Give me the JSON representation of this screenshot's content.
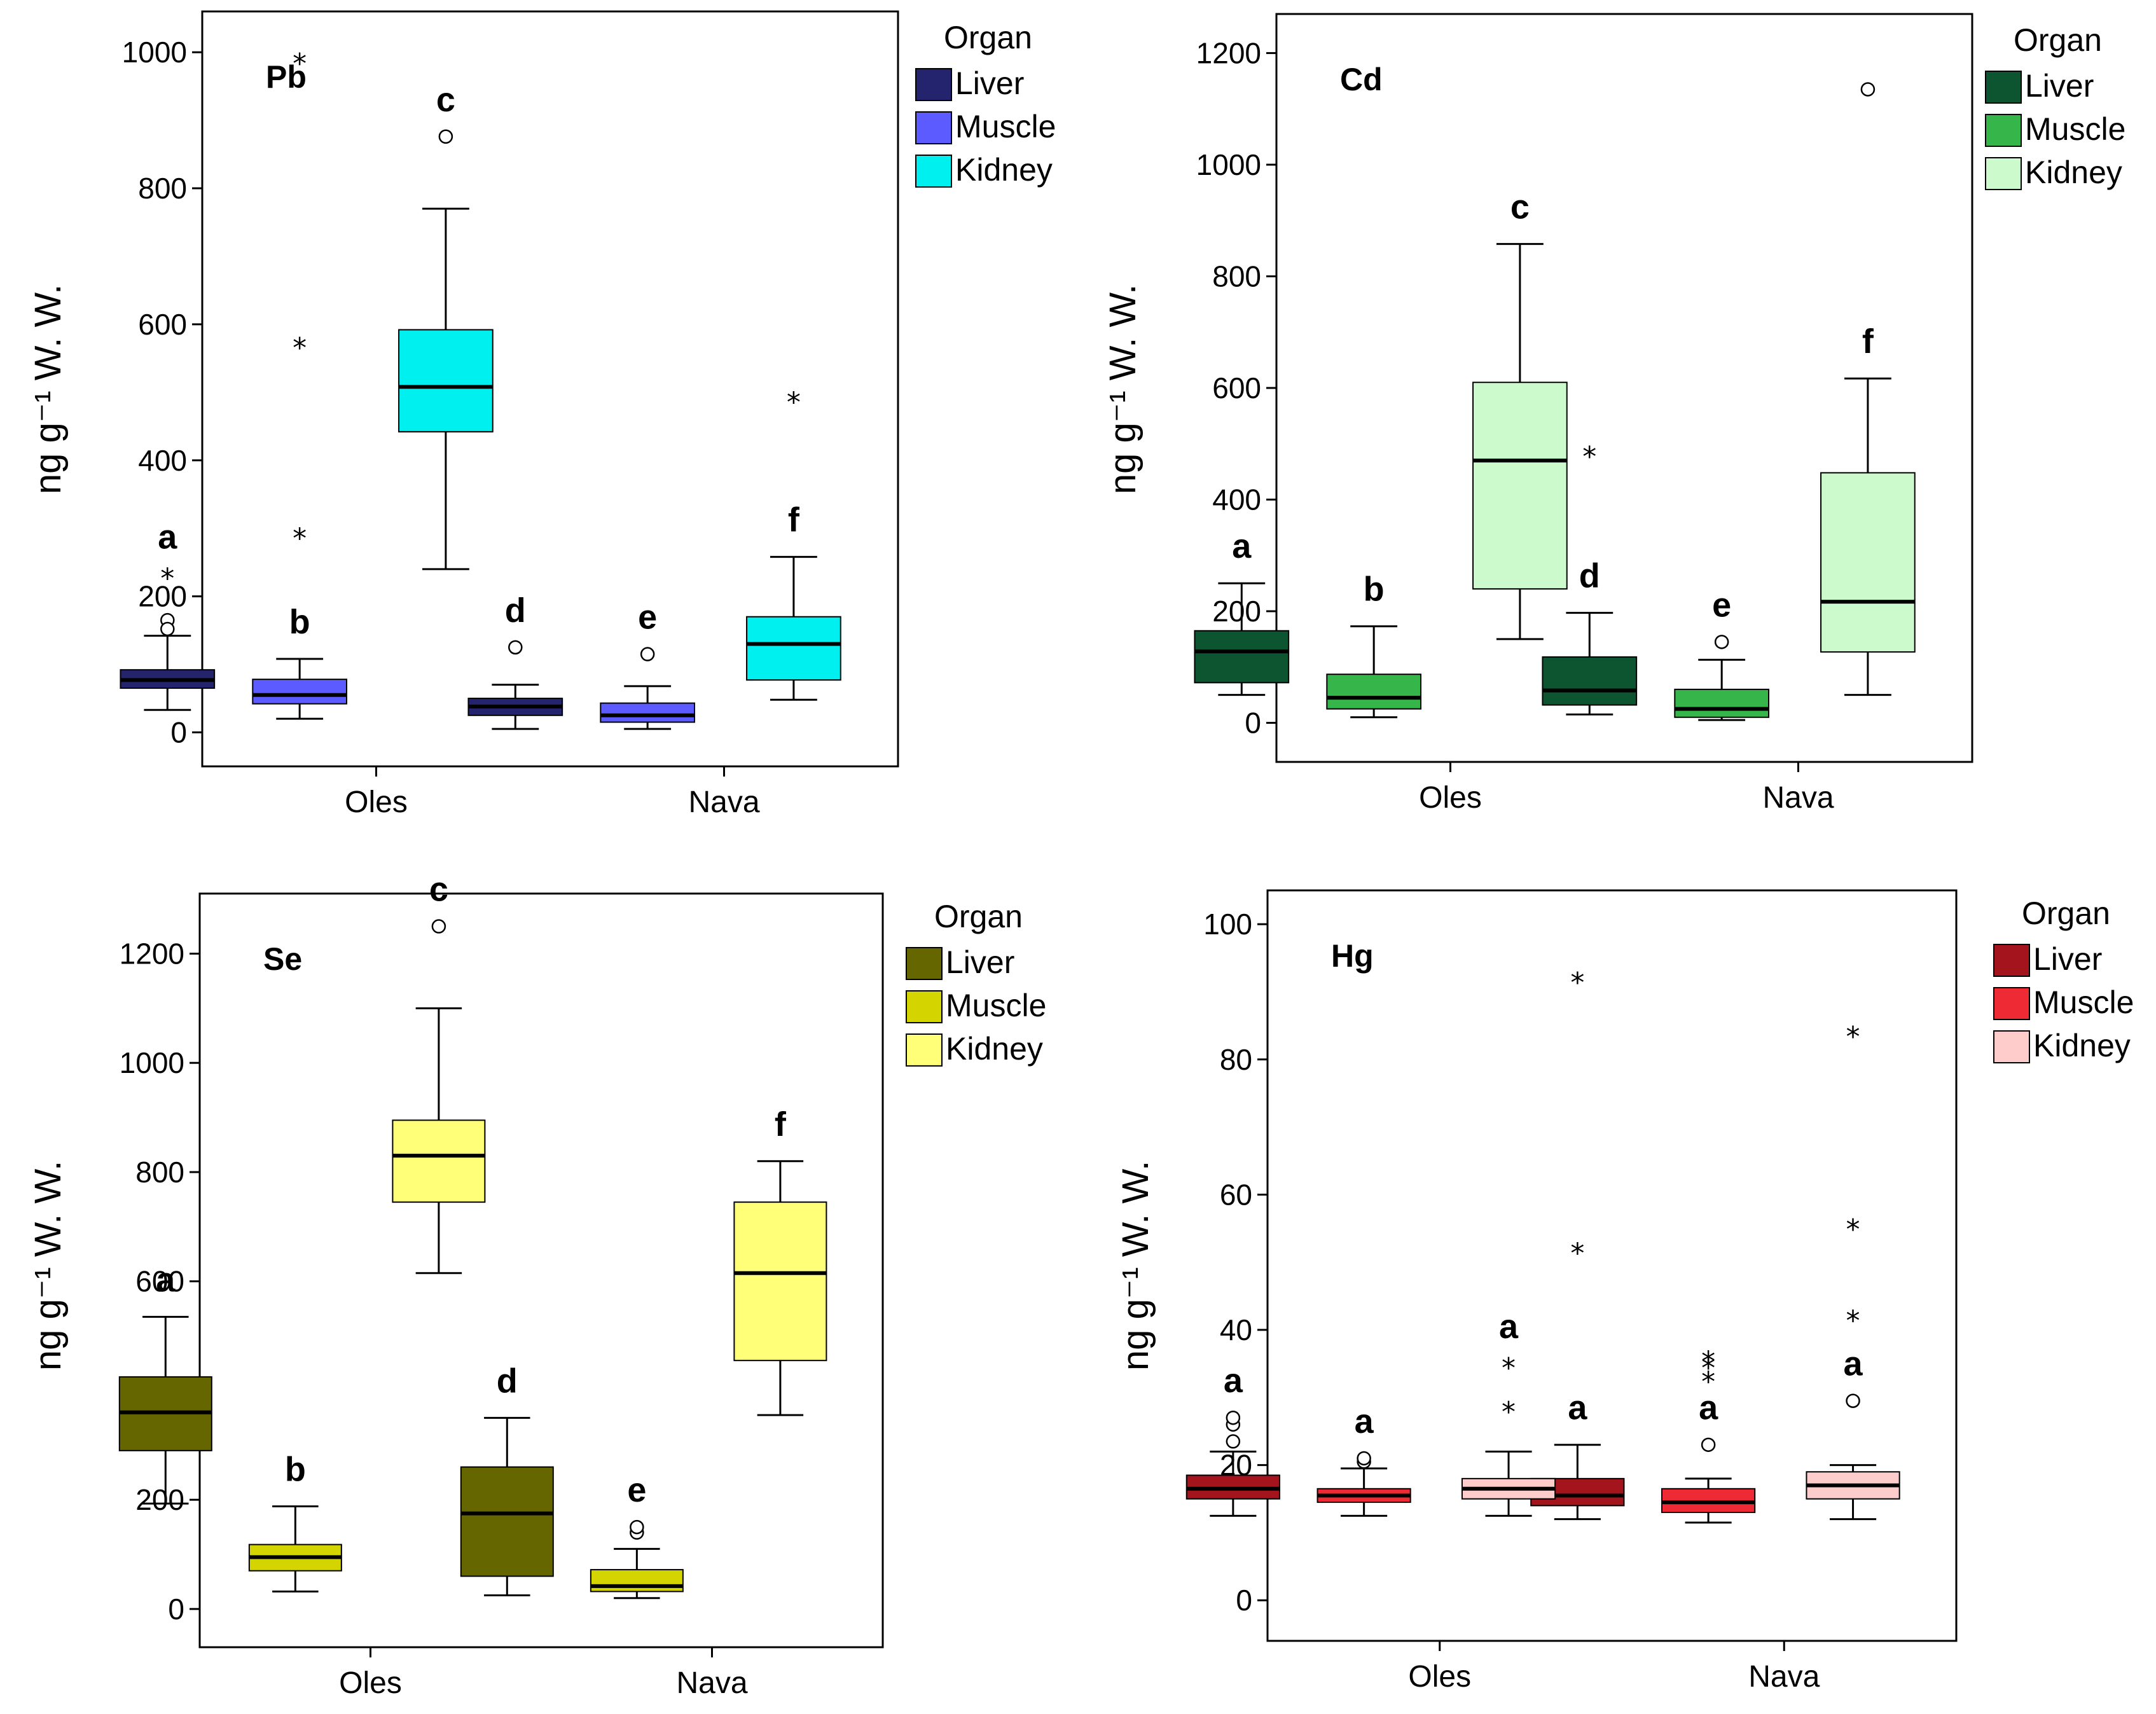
{
  "legend_title": "Organ",
  "ylabel": "ng g⁻¹ W. W.",
  "chart_data": [
    {
      "type": "box",
      "title": "Pb",
      "ylabel": "ng g⁻¹ W. W.",
      "categories": [
        "Oles",
        "Nava"
      ],
      "ylim": [
        -50,
        1060
      ],
      "yticks": [
        0,
        200,
        400,
        600,
        800,
        1000
      ],
      "legend_title": "Organ",
      "series": [
        {
          "name": "Liver",
          "color": "#24246e",
          "boxes": [
            {
              "category": "Oles",
              "min": 33,
              "q1": 65,
              "median": 77,
              "q3": 92,
              "max": 142,
              "letter": "a",
              "outliers": [
                {
                  "v": 165,
                  "t": "o"
                },
                {
                  "v": 152,
                  "t": "o"
                },
                {
                  "v": 233,
                  "t": "*"
                }
              ]
            },
            {
              "category": "Nava",
              "min": 5,
              "q1": 25,
              "median": 38,
              "q3": 50,
              "max": 70,
              "letter": "d",
              "outliers": [
                {
                  "v": 125,
                  "t": "o"
                }
              ]
            }
          ]
        },
        {
          "name": "Muscle",
          "color": "#5b5bff",
          "boxes": [
            {
              "category": "Oles",
              "min": 20,
              "q1": 42,
              "median": 55,
              "q3": 78,
              "max": 108,
              "letter": "b",
              "outliers": [
                {
                  "v": 292,
                  "t": "*"
                },
                {
                  "v": 572,
                  "t": "*"
                },
                {
                  "v": 990,
                  "t": "*"
                }
              ]
            },
            {
              "category": "Nava",
              "min": 5,
              "q1": 15,
              "median": 25,
              "q3": 43,
              "max": 68,
              "letter": "e",
              "outliers": [
                {
                  "v": 115,
                  "t": "o"
                }
              ]
            }
          ]
        },
        {
          "name": "Kidney",
          "color": "#00f0f0",
          "boxes": [
            {
              "category": "Oles",
              "min": 240,
              "q1": 442,
              "median": 508,
              "q3": 592,
              "max": 770,
              "letter": "c",
              "outliers": [
                {
                  "v": 876,
                  "t": "o"
                }
              ]
            },
            {
              "category": "Nava",
              "min": 48,
              "q1": 77,
              "median": 130,
              "q3": 170,
              "max": 258,
              "letter": "f",
              "outliers": [
                {
                  "v": 492,
                  "t": "*"
                }
              ]
            }
          ]
        }
      ]
    },
    {
      "type": "box",
      "title": "Cd",
      "ylabel": "ng g⁻¹ W. W.",
      "categories": [
        "Oles",
        "Nava"
      ],
      "ylim": [
        -70,
        1270
      ],
      "yticks": [
        0,
        200,
        400,
        600,
        800,
        1000,
        1200
      ],
      "legend_title": "Organ",
      "series": [
        {
          "name": "Liver",
          "color": "#0d5430",
          "boxes": [
            {
              "category": "Oles",
              "min": 50,
              "q1": 72,
              "median": 128,
              "q3": 165,
              "max": 250,
              "letter": "a",
              "outliers": []
            },
            {
              "category": "Nava",
              "min": 15,
              "q1": 32,
              "median": 58,
              "q3": 118,
              "max": 197,
              "letter": "d",
              "outliers": [
                {
                  "v": 485,
                  "t": "*"
                }
              ]
            }
          ]
        },
        {
          "name": "Muscle",
          "color": "#36b64a",
          "boxes": [
            {
              "category": "Oles",
              "min": 10,
              "q1": 25,
              "median": 45,
              "q3": 87,
              "max": 173,
              "letter": "b",
              "outliers": []
            },
            {
              "category": "Nava",
              "min": 5,
              "q1": 10,
              "median": 25,
              "q3": 60,
              "max": 113,
              "letter": "e",
              "outliers": [
                {
                  "v": 145,
                  "t": "o"
                }
              ]
            }
          ]
        },
        {
          "name": "Kidney",
          "color": "#ccfacc",
          "boxes": [
            {
              "category": "Oles",
              "min": 150,
              "q1": 240,
              "median": 470,
              "q3": 610,
              "max": 858,
              "letter": "c",
              "outliers": []
            },
            {
              "category": "Nava",
              "min": 50,
              "q1": 127,
              "median": 217,
              "q3": 448,
              "max": 617,
              "letter": "f",
              "outliers": [
                {
                  "v": 1135,
                  "t": "o"
                }
              ]
            }
          ]
        }
      ]
    },
    {
      "type": "box",
      "title": "Se",
      "ylabel": "ng g⁻¹ W. W.",
      "categories": [
        "Oles",
        "Nava"
      ],
      "ylim": [
        -70,
        1310
      ],
      "yticks": [
        0,
        200,
        400,
        600,
        800,
        1000,
        1200
      ],
      "legend_title": "Organ",
      "series": [
        {
          "name": "Liver",
          "color": "#666600",
          "boxes": [
            {
              "category": "Oles",
              "min": 193,
              "q1": 290,
              "median": 360,
              "q3": 425,
              "max": 535,
              "letter": "a",
              "outliers": []
            },
            {
              "category": "Nava",
              "min": 25,
              "q1": 60,
              "median": 175,
              "q3": 260,
              "max": 350,
              "letter": "d",
              "outliers": []
            }
          ]
        },
        {
          "name": "Muscle",
          "color": "#d4d400",
          "boxes": [
            {
              "category": "Oles",
              "min": 32,
              "q1": 70,
              "median": 95,
              "q3": 118,
              "max": 188,
              "letter": "b",
              "outliers": []
            },
            {
              "category": "Nava",
              "min": 20,
              "q1": 32,
              "median": 42,
              "q3": 72,
              "max": 110,
              "letter": "e",
              "outliers": [
                {
                  "v": 140,
                  "t": "o"
                },
                {
                  "v": 150,
                  "t": "o"
                }
              ]
            }
          ]
        },
        {
          "name": "Kidney",
          "color": "#ffff78",
          "boxes": [
            {
              "category": "Oles",
              "min": 615,
              "q1": 745,
              "median": 830,
              "q3": 895,
              "max": 1100,
              "letter": "c",
              "outliers": [
                {
                  "v": 1250,
                  "t": "o"
                }
              ]
            },
            {
              "category": "Nava",
              "min": 355,
              "q1": 455,
              "median": 615,
              "q3": 745,
              "max": 820,
              "letter": "f",
              "outliers": []
            }
          ]
        }
      ]
    },
    {
      "type": "box",
      "title": "Hg",
      "ylabel": "ng g⁻¹ W. W.",
      "categories": [
        "Oles",
        "Nava"
      ],
      "ylim": [
        -6,
        105
      ],
      "yticks": [
        0,
        20,
        40,
        60,
        80,
        100
      ],
      "legend_title": "Organ",
      "series": [
        {
          "name": "Liver",
          "color": "#a3141c",
          "boxes": [
            {
              "category": "Oles",
              "min": 12.5,
              "q1": 15,
              "median": 16.5,
              "q3": 18.5,
              "max": 22,
              "letter": "a",
              "outliers": [
                {
                  "v": 23.5,
                  "t": "o"
                },
                {
                  "v": 26,
                  "t": "o"
                },
                {
                  "v": 27,
                  "t": "o"
                }
              ]
            },
            {
              "category": "Nava",
              "min": 12,
              "q1": 14,
              "median": 15.5,
              "q3": 18,
              "max": 23,
              "letter": "a",
              "outliers": [
                {
                  "v": 52,
                  "t": "*"
                },
                {
                  "v": 92,
                  "t": "*"
                }
              ]
            }
          ]
        },
        {
          "name": "Muscle",
          "color": "#ee2a35",
          "boxes": [
            {
              "category": "Oles",
              "min": 12.5,
              "q1": 14.5,
              "median": 15.5,
              "q3": 16.5,
              "max": 19.5,
              "letter": "a",
              "outliers": [
                {
                  "v": 20.5,
                  "t": "o"
                },
                {
                  "v": 21,
                  "t": "o"
                }
              ]
            },
            {
              "category": "Nava",
              "min": 11.5,
              "q1": 13,
              "median": 14.5,
              "q3": 16.5,
              "max": 18,
              "letter": "a",
              "outliers": [
                {
                  "v": 23,
                  "t": "o"
                },
                {
                  "v": 33,
                  "t": "*"
                },
                {
                  "v": 35,
                  "t": "*"
                },
                {
                  "v": 36,
                  "t": "*"
                }
              ]
            }
          ]
        },
        {
          "name": "Kidney",
          "color": "#ffcccc",
          "boxes": [
            {
              "category": "Oles",
              "min": 12.5,
              "q1": 15,
              "median": 16.5,
              "q3": 18,
              "max": 22,
              "letter": "a",
              "outliers": [
                {
                  "v": 28.5,
                  "t": "*"
                },
                {
                  "v": 35,
                  "t": "*"
                }
              ]
            },
            {
              "category": "Nava",
              "min": 12,
              "q1": 15,
              "median": 17,
              "q3": 19,
              "max": 20,
              "letter": "a",
              "outliers": [
                {
                  "v": 29.5,
                  "t": "o"
                },
                {
                  "v": 42,
                  "t": "*"
                },
                {
                  "v": 55.5,
                  "t": "*"
                },
                {
                  "v": 84,
                  "t": "*"
                }
              ]
            }
          ]
        }
      ]
    }
  ]
}
